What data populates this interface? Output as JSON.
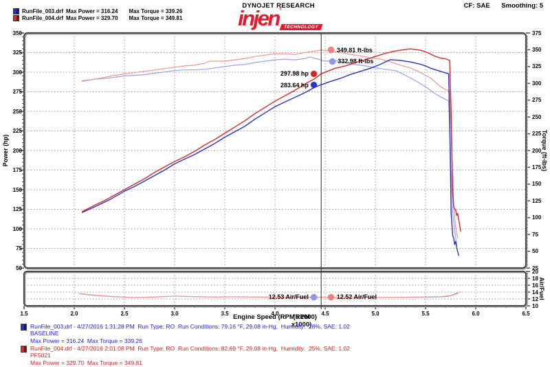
{
  "header": {
    "legend": [
      {
        "file": "RunFile_003.drf",
        "power": "Max Power = 316.24",
        "torque": "Max Torque = 339.26",
        "chip": [
          "#2433bb",
          "#10197a"
        ]
      },
      {
        "file": "RunFile_004.drf",
        "power": "Max Power = 329.70",
        "torque": "Max Torque = 349.81",
        "chip": [
          "#d42a2a",
          "#7a1010"
        ]
      }
    ],
    "brand_top": "DYNOJET RESEARCH",
    "logo_word": "injen",
    "logo_reg": "®",
    "logo_sub": "TECHNOLOGY",
    "cf_label": "CF: SAE",
    "smoothing_label": "Smoothing: 5"
  },
  "chart_data": {
    "type": "line",
    "x_axis": {
      "label": "Engine Speed (RPM x1000)",
      "overlay": "(RPM x1000)",
      "min": 1.5,
      "max": 6.5,
      "ticks": [
        1.5,
        2.0,
        2.5,
        3.0,
        3.5,
        4.0,
        4.5,
        5.0,
        5.5,
        6.0,
        6.5
      ]
    },
    "y_left": {
      "label": "Power (hp)",
      "min": 50,
      "max": 350,
      "ticks": [
        350,
        325,
        300,
        275,
        250,
        225,
        200,
        175,
        150,
        125,
        100,
        75,
        50
      ]
    },
    "y_right": {
      "label": "Torque (ft-lbs)",
      "min": 25,
      "max": 375,
      "ticks": [
        375,
        350,
        325,
        300,
        275,
        250,
        225,
        200,
        175,
        150,
        125,
        100,
        75,
        50,
        25
      ]
    },
    "af_axis": {
      "label": "Air/Fuel",
      "min": 10,
      "max": 20,
      "ticks": [
        20,
        18,
        16,
        14,
        12,
        10
      ]
    },
    "grid": true,
    "cursor_rpm": 4.46,
    "series": [
      {
        "name": "RunFile_003 Torque",
        "axis": "torque",
        "color": "#9aa2e8",
        "width": 1.2,
        "points": [
          [
            2.08,
            304
          ],
          [
            2.2,
            306
          ],
          [
            2.35,
            308
          ],
          [
            2.5,
            311
          ],
          [
            2.6,
            312
          ],
          [
            2.7,
            313
          ],
          [
            2.8,
            315
          ],
          [
            2.9,
            317
          ],
          [
            3.0,
            319
          ],
          [
            3.1,
            320
          ],
          [
            3.2,
            320
          ],
          [
            3.3,
            321
          ],
          [
            3.4,
            323
          ],
          [
            3.5,
            325
          ],
          [
            3.6,
            327
          ],
          [
            3.7,
            328
          ],
          [
            3.8,
            331
          ],
          [
            3.9,
            333
          ],
          [
            4.0,
            335
          ],
          [
            4.1,
            336
          ],
          [
            4.2,
            335
          ],
          [
            4.3,
            337
          ],
          [
            4.35,
            339.3
          ],
          [
            4.45,
            335
          ],
          [
            4.5,
            333
          ],
          [
            4.6,
            334
          ],
          [
            4.7,
            331
          ],
          [
            4.8,
            328
          ],
          [
            4.9,
            326
          ],
          [
            5.0,
            323
          ],
          [
            5.1,
            321
          ],
          [
            5.2,
            319
          ],
          [
            5.3,
            312
          ],
          [
            5.4,
            304
          ],
          [
            5.5,
            295
          ],
          [
            5.6,
            284
          ],
          [
            5.65,
            280
          ],
          [
            5.7,
            276
          ],
          [
            5.73,
            274
          ],
          [
            5.75,
            190
          ],
          [
            5.77,
            110
          ],
          [
            5.79,
            80
          ],
          [
            5.81,
            60
          ]
        ]
      },
      {
        "name": "RunFile_004 Torque",
        "axis": "torque",
        "color": "#f1948f",
        "width": 1.2,
        "points": [
          [
            2.08,
            303
          ],
          [
            2.2,
            306
          ],
          [
            2.3,
            309
          ],
          [
            2.4,
            312
          ],
          [
            2.5,
            314
          ],
          [
            2.6,
            316
          ],
          [
            2.7,
            318
          ],
          [
            2.8,
            320
          ],
          [
            2.9,
            322
          ],
          [
            3.0,
            324
          ],
          [
            3.1,
            326
          ],
          [
            3.2,
            327
          ],
          [
            3.3,
            330
          ],
          [
            3.35,
            333
          ],
          [
            3.45,
            333
          ],
          [
            3.5,
            333
          ],
          [
            3.6,
            335
          ],
          [
            3.7,
            337
          ],
          [
            3.8,
            340
          ],
          [
            3.9,
            342
          ],
          [
            4.0,
            344
          ],
          [
            4.1,
            344
          ],
          [
            4.2,
            343
          ],
          [
            4.3,
            346
          ],
          [
            4.4,
            348
          ],
          [
            4.46,
            349.8
          ],
          [
            4.55,
            348
          ],
          [
            4.65,
            346
          ],
          [
            4.75,
            343
          ],
          [
            4.85,
            341
          ],
          [
            4.95,
            338
          ],
          [
            5.05,
            336
          ],
          [
            5.15,
            332
          ],
          [
            5.25,
            327
          ],
          [
            5.35,
            323
          ],
          [
            5.45,
            316
          ],
          [
            5.55,
            308
          ],
          [
            5.65,
            295
          ],
          [
            5.7,
            291
          ],
          [
            5.74,
            288
          ],
          [
            5.76,
            200
          ],
          [
            5.78,
            120
          ],
          [
            5.8,
            85
          ],
          [
            5.82,
            70
          ]
        ]
      },
      {
        "name": "RunFile_003 Power",
        "axis": "power",
        "color": "#2433bb",
        "width": 1.4,
        "points": [
          [
            2.08,
            121
          ],
          [
            2.2,
            128
          ],
          [
            2.35,
            137
          ],
          [
            2.5,
            148
          ],
          [
            2.6,
            154
          ],
          [
            2.7,
            161
          ],
          [
            2.8,
            168
          ],
          [
            2.9,
            175
          ],
          [
            3.0,
            183
          ],
          [
            3.1,
            189
          ],
          [
            3.2,
            195
          ],
          [
            3.3,
            202
          ],
          [
            3.4,
            209
          ],
          [
            3.5,
            217
          ],
          [
            3.6,
            224
          ],
          [
            3.7,
            231
          ],
          [
            3.8,
            240
          ],
          [
            3.9,
            248
          ],
          [
            4.0,
            256
          ],
          [
            4.1,
            262
          ],
          [
            4.2,
            268
          ],
          [
            4.3,
            274
          ],
          [
            4.4,
            281
          ],
          [
            4.46,
            284
          ],
          [
            4.55,
            288
          ],
          [
            4.65,
            292
          ],
          [
            4.75,
            297
          ],
          [
            4.85,
            301
          ],
          [
            4.95,
            305
          ],
          [
            5.05,
            310
          ],
          [
            5.15,
            316
          ],
          [
            5.25,
            315
          ],
          [
            5.35,
            313
          ],
          [
            5.45,
            310
          ],
          [
            5.5,
            308
          ],
          [
            5.55,
            305
          ],
          [
            5.6,
            303
          ],
          [
            5.65,
            301
          ],
          [
            5.7,
            299
          ],
          [
            5.73,
            298
          ],
          [
            5.745,
            200
          ],
          [
            5.755,
            120
          ],
          [
            5.77,
            92
          ],
          [
            5.78,
            88
          ],
          [
            5.79,
            80
          ],
          [
            5.8,
            84
          ],
          [
            5.81,
            76
          ],
          [
            5.83,
            66
          ]
        ]
      },
      {
        "name": "RunFile_004 Power",
        "axis": "power",
        "color": "#d42a2a",
        "width": 1.4,
        "points": [
          [
            2.08,
            122
          ],
          [
            2.2,
            130
          ],
          [
            2.3,
            136
          ],
          [
            2.4,
            143
          ],
          [
            2.5,
            150
          ],
          [
            2.6,
            157
          ],
          [
            2.7,
            164
          ],
          [
            2.8,
            172
          ],
          [
            2.9,
            179
          ],
          [
            3.0,
            186
          ],
          [
            3.1,
            192
          ],
          [
            3.2,
            199
          ],
          [
            3.3,
            207
          ],
          [
            3.4,
            214
          ],
          [
            3.5,
            222
          ],
          [
            3.6,
            230
          ],
          [
            3.7,
            238
          ],
          [
            3.8,
            247
          ],
          [
            3.9,
            255
          ],
          [
            4.0,
            263
          ],
          [
            4.1,
            270
          ],
          [
            4.2,
            277
          ],
          [
            4.3,
            285
          ],
          [
            4.4,
            292
          ],
          [
            4.46,
            298
          ],
          [
            4.6,
            305
          ],
          [
            4.7,
            308
          ],
          [
            4.8,
            312
          ],
          [
            4.9,
            316
          ],
          [
            5.0,
            320
          ],
          [
            5.1,
            324
          ],
          [
            5.2,
            327
          ],
          [
            5.3,
            329
          ],
          [
            5.35,
            329.7
          ],
          [
            5.45,
            328
          ],
          [
            5.5,
            326
          ],
          [
            5.55,
            323
          ],
          [
            5.6,
            320
          ],
          [
            5.65,
            318
          ],
          [
            5.7,
            317
          ],
          [
            5.74,
            315
          ],
          [
            5.755,
            250
          ],
          [
            5.77,
            150
          ],
          [
            5.78,
            128
          ],
          [
            5.8,
            124
          ],
          [
            5.81,
            117
          ],
          [
            5.82,
            120
          ],
          [
            5.83,
            112
          ],
          [
            5.85,
            97
          ]
        ]
      },
      {
        "name": "RunFile_003 AirFuel",
        "axis": "af",
        "color": "#9aa2e8",
        "width": 1.1,
        "points": [
          [
            2.05,
            13.6
          ],
          [
            2.2,
            13.1
          ],
          [
            2.4,
            12.7
          ],
          [
            2.6,
            12.45
          ],
          [
            2.8,
            12.6
          ],
          [
            3.0,
            12.85
          ],
          [
            3.2,
            12.7
          ],
          [
            3.4,
            12.6
          ],
          [
            3.6,
            12.65
          ],
          [
            3.8,
            12.6
          ],
          [
            4.0,
            12.55
          ],
          [
            4.2,
            12.5
          ],
          [
            4.46,
            12.53
          ],
          [
            4.7,
            12.5
          ],
          [
            5.0,
            12.5
          ],
          [
            5.3,
            12.5
          ],
          [
            5.5,
            12.55
          ],
          [
            5.65,
            12.6
          ],
          [
            5.72,
            12.7
          ],
          [
            5.78,
            13.2
          ],
          [
            5.82,
            13.6
          ]
        ]
      },
      {
        "name": "RunFile_004 AirFuel",
        "axis": "af",
        "color": "#f1948f",
        "width": 1.1,
        "points": [
          [
            2.05,
            13.5
          ],
          [
            2.2,
            13.0
          ],
          [
            2.4,
            12.65
          ],
          [
            2.6,
            12.4
          ],
          [
            2.8,
            12.55
          ],
          [
            3.0,
            12.8
          ],
          [
            3.2,
            12.65
          ],
          [
            3.4,
            12.55
          ],
          [
            3.6,
            12.6
          ],
          [
            3.8,
            12.55
          ],
          [
            4.0,
            12.5
          ],
          [
            4.2,
            12.48
          ],
          [
            4.46,
            12.52
          ],
          [
            4.7,
            12.48
          ],
          [
            5.0,
            12.5
          ],
          [
            5.3,
            12.52
          ],
          [
            5.5,
            12.6
          ],
          [
            5.65,
            12.7
          ],
          [
            5.75,
            13.0
          ],
          [
            5.8,
            13.6
          ],
          [
            5.85,
            14.1
          ]
        ]
      }
    ],
    "annotations": [
      {
        "label": "349.81 ft-lbs",
        "axis": "torque",
        "value": 349.81,
        "rpm": 4.56,
        "dot_color": "#f2827e",
        "side": "right"
      },
      {
        "label": "332.98 ft-lbs",
        "axis": "torque",
        "value": 332.98,
        "rpm": 4.57,
        "dot_color": "#8f96ee",
        "side": "right"
      },
      {
        "label": "297.98 hp",
        "axis": "power",
        "value": 297.98,
        "rpm": 4.39,
        "dot_color": "#e02020",
        "side": "left"
      },
      {
        "label": "283.64 hp",
        "axis": "power",
        "value": 283.64,
        "rpm": 4.39,
        "dot_color": "#2a35cc",
        "side": "left"
      },
      {
        "label": "12.53 Air/Fuel",
        "axis": "af",
        "value": 12.53,
        "rpm": 4.39,
        "dot_color": "#8f96ee",
        "side": "left"
      },
      {
        "label": "12.52 Air/Fuel",
        "axis": "af",
        "value": 12.52,
        "rpm": 4.56,
        "dot_color": "#f2827e",
        "side": "right"
      }
    ]
  },
  "footer": {
    "runs": [
      {
        "color": "#2222cc",
        "chip": [
          "#2433bb",
          "#10197a"
        ],
        "line1": "RunFile_003.drf - 4/27/2016 1:31:28 PM  Run Type: RO  Run Conditions: 79.16 °F, 29.08 in-Hg,  Humidity:  28%, SAE: 1.02",
        "line2": "BASELINE",
        "line3": "Max Power = 316.24  Max Torque = 339.26"
      },
      {
        "color": "#cc2222",
        "chip": [
          "#d42a2a",
          "#7a1010"
        ],
        "line1": "RunFile_004.drf - 4/27/2016 2:01:08 PM  Run Type: RO  Run Conditions: 82.69 °F, 29.08 in-Hg,  Humidity:  25%, SAE: 1.02",
        "line2": "PF5021",
        "line3": "Max Power = 329.70  Max Torque = 349.81"
      }
    ]
  }
}
